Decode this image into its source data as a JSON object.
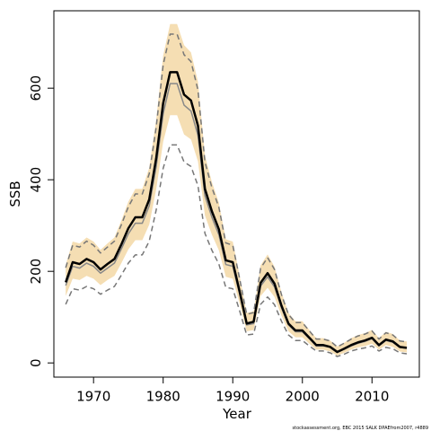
{
  "chart_data": {
    "type": "line",
    "x_label": "Year",
    "y_label": "SSB",
    "footer": "stockassessment.org, EBC 2015 SALK DPAEfrom2007, r4889",
    "x": [
      1966,
      1967,
      1968,
      1969,
      1970,
      1971,
      1972,
      1973,
      1974,
      1975,
      1976,
      1977,
      1978,
      1979,
      1980,
      1981,
      1982,
      1983,
      1984,
      1985,
      1986,
      1987,
      1988,
      1989,
      1990,
      1991,
      1992,
      1993,
      1994,
      1995,
      1996,
      1997,
      1998,
      1999,
      2000,
      2001,
      2002,
      2003,
      2004,
      2005,
      2006,
      2007,
      2008,
      2009,
      2010,
      2011,
      2012,
      2013,
      2014,
      2015
    ],
    "band": {
      "color": "#f5deb3",
      "upper": [
        214,
        265,
        261,
        274,
        265,
        247,
        261,
        274,
        311,
        352,
        380,
        380,
        426,
        531,
        671,
        740,
        740,
        694,
        678,
        614,
        453,
        395,
        350,
        270,
        265,
        189,
        109,
        113,
        213,
        237,
        210,
        154,
        109,
        91,
        91,
        72,
        54,
        54,
        49,
        36,
        44,
        54,
        61,
        65,
        72,
        54,
        68,
        63,
        49,
        47
      ],
      "lower": [
        146,
        184,
        181,
        190,
        184,
        170,
        181,
        190,
        218,
        248,
        268,
        268,
        302,
        379,
        483,
        541,
        541,
        499,
        488,
        440,
        322,
        280,
        246,
        188,
        184,
        128,
        69,
        72,
        146,
        164,
        144,
        103,
        69,
        56,
        56,
        42,
        29,
        29,
        25,
        16,
        22,
        29,
        34,
        37,
        42,
        29,
        39,
        35,
        25,
        23
      ]
    },
    "series": [
      {
        "color": "#777777",
        "dashed": true,
        "line_width": 1.5,
        "values": [
          208,
          257,
          253,
          266,
          257,
          240,
          253,
          266,
          302,
          341,
          369,
          369,
          413,
          515,
          651,
          718,
          718,
          673,
          658,
          596,
          439,
          383,
          340,
          262,
          257,
          183,
          106,
          110,
          207,
          230,
          204,
          149,
          106,
          88,
          88,
          70,
          52,
          52,
          48,
          35,
          43,
          52,
          59,
          63,
          70,
          52,
          66,
          61,
          48,
          46
        ]
      },
      {
        "color": "#777777",
        "dashed": true,
        "line_width": 1.5,
        "values": [
          128,
          162,
          159,
          167,
          162,
          150,
          159,
          167,
          192,
          218,
          236,
          236,
          266,
          334,
          425,
          476,
          476,
          439,
          429,
          387,
          283,
          246,
          216,
          165,
          162,
          113,
          61,
          63,
          128,
          144,
          127,
          91,
          61,
          49,
          49,
          37,
          26,
          26,
          22,
          14,
          19,
          26,
          30,
          33,
          37,
          26,
          34,
          31,
          22,
          20
        ]
      },
      {
        "color": "#888888",
        "dashed": false,
        "line_width": 1.5,
        "values": [
          169,
          211,
          207,
          218,
          211,
          196,
          207,
          218,
          249,
          282,
          305,
          305,
          343,
          429,
          544,
          610,
          610,
          563,
          550,
          497,
          365,
          318,
          280,
          215,
          211,
          149,
          83,
          86,
          168,
          188,
          166,
          120,
          83,
          68,
          68,
          53,
          37,
          37,
          34,
          23,
          30,
          37,
          43,
          47,
          53,
          37,
          49,
          45,
          34,
          32
        ]
      },
      {
        "color": "#000000",
        "dashed": false,
        "line_width": 2.5,
        "values": [
          176,
          220,
          216,
          227,
          220,
          204,
          216,
          227,
          259,
          294,
          318,
          318,
          357,
          447,
          567,
          635,
          635,
          586,
          573,
          518,
          380,
          331,
          292,
          224,
          220,
          155,
          86,
          90,
          175,
          196,
          173,
          125,
          86,
          71,
          71,
          55,
          39,
          39,
          35,
          24,
          31,
          39,
          45,
          49,
          55,
          39,
          51,
          47,
          35,
          33
        ]
      }
    ],
    "xlim": [
      1964.3,
      2016.8
    ],
    "ylim": [
      -31,
      769
    ],
    "xticks": [
      1970,
      1980,
      1990,
      2000,
      2010
    ],
    "yticks": [
      0,
      200,
      400,
      600
    ]
  }
}
